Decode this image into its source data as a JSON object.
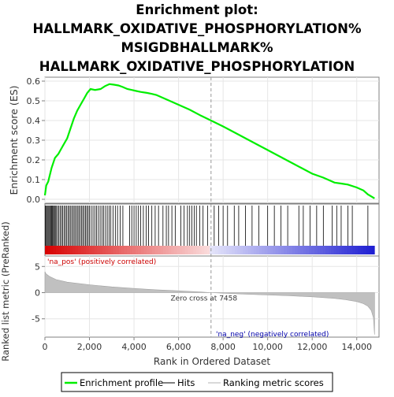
{
  "chart_data": {
    "type": "line",
    "title_lines": [
      "Enrichment plot:",
      "HALLMARK_OXIDATIVE_PHOSPHORYLATION%",
      "MSIGDBHALLMARK%",
      "HALLMARK_OXIDATIVE_PHOSPHORYLATION"
    ],
    "xlabel": "Rank in Ordered Dataset",
    "es_ylabel": "Enrichment score (ES)",
    "metric_ylabel": "Ranked list metric (PreRanked)",
    "xlim": [
      0,
      15000
    ],
    "x_ticks": [
      0,
      2000,
      4000,
      6000,
      8000,
      10000,
      12000,
      14000
    ],
    "x_tick_labels": [
      "0",
      "2,000",
      "4,000",
      "6,000",
      "8,000",
      "10,000",
      "12,000",
      "14,000"
    ],
    "es_ylim": [
      -0.02,
      0.62
    ],
    "es_ticks": [
      0.0,
      0.1,
      0.2,
      0.3,
      0.4,
      0.5,
      0.6
    ],
    "es_tick_labels": [
      "0.0",
      "0.1",
      "0.2",
      "0.3",
      "0.4",
      "0.5",
      "0.6"
    ],
    "metric_ylim": [
      -8.5,
      7
    ],
    "metric_ticks": [
      -5,
      0,
      5
    ],
    "metric_tick_labels": [
      "-5",
      "0",
      "5"
    ],
    "enrichment_profile": {
      "name": "Enrichment profile",
      "color": "#00ee00",
      "x": [
        0,
        60,
        150,
        300,
        450,
        600,
        800,
        1000,
        1150,
        1300,
        1450,
        1600,
        1750,
        1900,
        2050,
        2250,
        2500,
        2700,
        2900,
        3100,
        3300,
        3500,
        3700,
        3900,
        4100,
        4300,
        4600,
        4800,
        5000,
        5300,
        5600,
        6000,
        6500,
        7000,
        7458,
        8000,
        8500,
        9000,
        9500,
        10000,
        10500,
        11000,
        11500,
        12000,
        12500,
        12800,
        13000,
        13300,
        13600,
        14000,
        14300,
        14500,
        14800
      ],
      "y": [
        0.02,
        0.07,
        0.09,
        0.16,
        0.21,
        0.23,
        0.27,
        0.31,
        0.36,
        0.41,
        0.45,
        0.48,
        0.51,
        0.54,
        0.56,
        0.555,
        0.56,
        0.575,
        0.585,
        0.582,
        0.578,
        0.57,
        0.56,
        0.555,
        0.55,
        0.545,
        0.54,
        0.535,
        0.53,
        0.515,
        0.5,
        0.48,
        0.455,
        0.425,
        0.4,
        0.37,
        0.34,
        0.31,
        0.28,
        0.25,
        0.22,
        0.19,
        0.16,
        0.13,
        0.11,
        0.095,
        0.085,
        0.08,
        0.075,
        0.06,
        0.045,
        0.025,
        0.005
      ]
    },
    "hits_approx_ranks": [
      20,
      60,
      100,
      140,
      180,
      220,
      260,
      300,
      340,
      380,
      420,
      460,
      500,
      560,
      620,
      680,
      740,
      800,
      860,
      920,
      980,
      1040,
      1100,
      1160,
      1220,
      1280,
      1340,
      1400,
      1460,
      1520,
      1580,
      1640,
      1700,
      1760,
      1820,
      1880,
      1940,
      2000,
      2080,
      2160,
      2240,
      2320,
      2400,
      2480,
      2560,
      2640,
      2720,
      2800,
      2880,
      2960,
      3060,
      3160,
      3260,
      3380,
      3500,
      3800,
      3900,
      4000,
      4100,
      4200,
      4300,
      4420,
      4550,
      4650,
      4800,
      4950,
      5100,
      5300,
      5450,
      5550,
      5700,
      5850,
      6100,
      6250,
      6400,
      6500,
      6600,
      6700,
      6800,
      6950,
      7100,
      7300,
      7600,
      7800,
      8000,
      8200,
      8500,
      8700,
      9000,
      9300,
      9600,
      10000,
      10300,
      10600,
      10900,
      11400,
      11600,
      11900,
      12200,
      12500,
      12900,
      13100,
      13300,
      13600,
      13800,
      14500
    ],
    "metric_curve": {
      "x": [
        0,
        50,
        200,
        500,
        1000,
        2000,
        3000,
        4000,
        5000,
        6000,
        7000,
        7458,
        8000,
        9000,
        10000,
        11000,
        12000,
        13000,
        13500,
        14000,
        14300,
        14500,
        14650,
        14750,
        14800
      ],
      "y": [
        4.0,
        3.6,
        3.1,
        2.5,
        2.0,
        1.5,
        1.1,
        0.8,
        0.55,
        0.35,
        0.12,
        0.0,
        -0.1,
        -0.3,
        -0.45,
        -0.6,
        -0.8,
        -1.1,
        -1.35,
        -1.7,
        -2.1,
        -2.6,
        -3.4,
        -4.8,
        -8.0
      ]
    },
    "zero_cross_label": "Zero cross at 7458",
    "zero_cross_rank": 7458,
    "pos_label": "'na_pos' (positively correlated)",
    "neg_label": "'na_neg' (negatively correlated)",
    "legend": {
      "placement": "bottom",
      "items": [
        "Enrichment profile",
        "Hits",
        "Ranking metric scores"
      ]
    },
    "grid": true
  }
}
